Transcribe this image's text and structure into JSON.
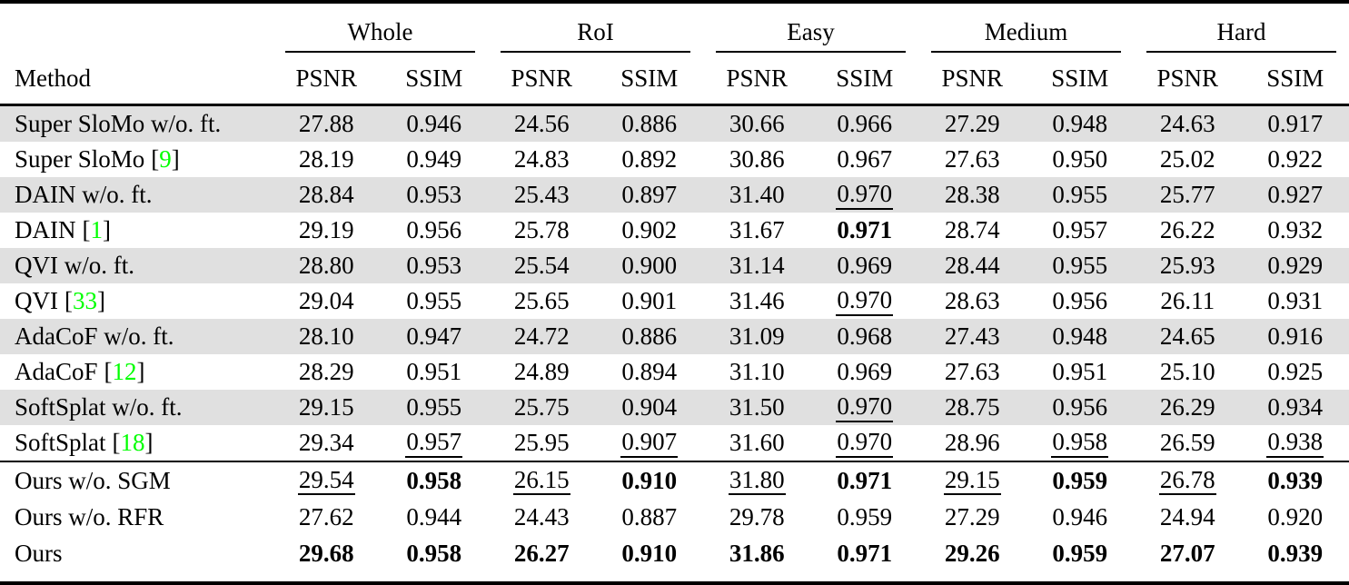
{
  "table": {
    "method_header": "Method",
    "metric_headers": [
      "PSNR",
      "SSIM"
    ],
    "groups": [
      {
        "label": "Whole"
      },
      {
        "label": "RoI"
      },
      {
        "label": "Easy"
      },
      {
        "label": "Medium"
      },
      {
        "label": "Hard"
      }
    ],
    "cite_open": "[",
    "cite_close": "]",
    "cite_color": "#00ff00",
    "stripe_color": "#e0e0e0",
    "rows": [
      {
        "label": "Super SloMo w/o. ft.",
        "cite": null,
        "shaded": true,
        "block": 1,
        "cells": [
          {
            "v": "27.88"
          },
          {
            "v": "0.946"
          },
          {
            "v": "24.56"
          },
          {
            "v": "0.886"
          },
          {
            "v": "30.66"
          },
          {
            "v": "0.966"
          },
          {
            "v": "27.29"
          },
          {
            "v": "0.948"
          },
          {
            "v": "24.63"
          },
          {
            "v": "0.917"
          }
        ]
      },
      {
        "label": "Super SloMo",
        "cite": "9",
        "shaded": false,
        "block": 1,
        "cells": [
          {
            "v": "28.19"
          },
          {
            "v": "0.949"
          },
          {
            "v": "24.83"
          },
          {
            "v": "0.892"
          },
          {
            "v": "30.86"
          },
          {
            "v": "0.967"
          },
          {
            "v": "27.63"
          },
          {
            "v": "0.950"
          },
          {
            "v": "25.02"
          },
          {
            "v": "0.922"
          }
        ]
      },
      {
        "label": "DAIN w/o. ft.",
        "cite": null,
        "shaded": true,
        "block": 1,
        "cells": [
          {
            "v": "28.84"
          },
          {
            "v": "0.953"
          },
          {
            "v": "25.43"
          },
          {
            "v": "0.897"
          },
          {
            "v": "31.40"
          },
          {
            "v": "0.970",
            "f": "u"
          },
          {
            "v": "28.38"
          },
          {
            "v": "0.955"
          },
          {
            "v": "25.77"
          },
          {
            "v": "0.927"
          }
        ]
      },
      {
        "label": "DAIN",
        "cite": "1",
        "shaded": false,
        "block": 1,
        "cells": [
          {
            "v": "29.19"
          },
          {
            "v": "0.956"
          },
          {
            "v": "25.78"
          },
          {
            "v": "0.902"
          },
          {
            "v": "31.67"
          },
          {
            "v": "0.971",
            "f": "b"
          },
          {
            "v": "28.74"
          },
          {
            "v": "0.957"
          },
          {
            "v": "26.22"
          },
          {
            "v": "0.932"
          }
        ]
      },
      {
        "label": "QVI w/o. ft.",
        "cite": null,
        "shaded": true,
        "block": 1,
        "cells": [
          {
            "v": "28.80"
          },
          {
            "v": "0.953"
          },
          {
            "v": "25.54"
          },
          {
            "v": "0.900"
          },
          {
            "v": "31.14"
          },
          {
            "v": "0.969"
          },
          {
            "v": "28.44"
          },
          {
            "v": "0.955"
          },
          {
            "v": "25.93"
          },
          {
            "v": "0.929"
          }
        ]
      },
      {
        "label": "QVI",
        "cite": "33",
        "shaded": false,
        "block": 1,
        "cells": [
          {
            "v": "29.04"
          },
          {
            "v": "0.955"
          },
          {
            "v": "25.65"
          },
          {
            "v": "0.901"
          },
          {
            "v": "31.46"
          },
          {
            "v": "0.970",
            "f": "u"
          },
          {
            "v": "28.63"
          },
          {
            "v": "0.956"
          },
          {
            "v": "26.11"
          },
          {
            "v": "0.931"
          }
        ]
      },
      {
        "label": "AdaCoF w/o. ft.",
        "cite": null,
        "shaded": true,
        "block": 1,
        "cells": [
          {
            "v": "28.10"
          },
          {
            "v": "0.947"
          },
          {
            "v": "24.72"
          },
          {
            "v": "0.886"
          },
          {
            "v": "31.09"
          },
          {
            "v": "0.968"
          },
          {
            "v": "27.43"
          },
          {
            "v": "0.948"
          },
          {
            "v": "24.65"
          },
          {
            "v": "0.916"
          }
        ]
      },
      {
        "label": "AdaCoF",
        "cite": "12",
        "shaded": false,
        "block": 1,
        "cells": [
          {
            "v": "28.29"
          },
          {
            "v": "0.951"
          },
          {
            "v": "24.89"
          },
          {
            "v": "0.894"
          },
          {
            "v": "31.10"
          },
          {
            "v": "0.969"
          },
          {
            "v": "27.63"
          },
          {
            "v": "0.951"
          },
          {
            "v": "25.10"
          },
          {
            "v": "0.925"
          }
        ]
      },
      {
        "label": "SoftSplat w/o. ft.",
        "cite": null,
        "shaded": true,
        "block": 1,
        "cells": [
          {
            "v": "29.15"
          },
          {
            "v": "0.955"
          },
          {
            "v": "25.75"
          },
          {
            "v": "0.904"
          },
          {
            "v": "31.50"
          },
          {
            "v": "0.970",
            "f": "u"
          },
          {
            "v": "28.75"
          },
          {
            "v": "0.956"
          },
          {
            "v": "26.29"
          },
          {
            "v": "0.934"
          }
        ]
      },
      {
        "label": "SoftSplat",
        "cite": "18",
        "shaded": false,
        "block": 1,
        "cells": [
          {
            "v": "29.34"
          },
          {
            "v": "0.957",
            "f": "u"
          },
          {
            "v": "25.95"
          },
          {
            "v": "0.907",
            "f": "u"
          },
          {
            "v": "31.60"
          },
          {
            "v": "0.970",
            "f": "u"
          },
          {
            "v": "28.96"
          },
          {
            "v": "0.958",
            "f": "u"
          },
          {
            "v": "26.59"
          },
          {
            "v": "0.938",
            "f": "u"
          }
        ]
      },
      {
        "label": "Ours w/o. SGM",
        "cite": null,
        "shaded": false,
        "block": 2,
        "cells": [
          {
            "v": "29.54",
            "f": "u"
          },
          {
            "v": "0.958",
            "f": "b"
          },
          {
            "v": "26.15",
            "f": "u"
          },
          {
            "v": "0.910",
            "f": "b"
          },
          {
            "v": "31.80",
            "f": "u"
          },
          {
            "v": "0.971",
            "f": "b"
          },
          {
            "v": "29.15",
            "f": "u"
          },
          {
            "v": "0.959",
            "f": "b"
          },
          {
            "v": "26.78",
            "f": "u"
          },
          {
            "v": "0.939",
            "f": "b"
          }
        ]
      },
      {
        "label": "Ours w/o. RFR",
        "cite": null,
        "shaded": false,
        "block": 2,
        "cells": [
          {
            "v": "27.62"
          },
          {
            "v": "0.944"
          },
          {
            "v": "24.43"
          },
          {
            "v": "0.887"
          },
          {
            "v": "29.78"
          },
          {
            "v": "0.959"
          },
          {
            "v": "27.29"
          },
          {
            "v": "0.946"
          },
          {
            "v": "24.94"
          },
          {
            "v": "0.920"
          }
        ]
      },
      {
        "label": "Ours",
        "cite": null,
        "shaded": false,
        "block": 2,
        "cells": [
          {
            "v": "29.68",
            "f": "b"
          },
          {
            "v": "0.958",
            "f": "b"
          },
          {
            "v": "26.27",
            "f": "b"
          },
          {
            "v": "0.910",
            "f": "b"
          },
          {
            "v": "31.86",
            "f": "b"
          },
          {
            "v": "0.971",
            "f": "b"
          },
          {
            "v": "29.26",
            "f": "b"
          },
          {
            "v": "0.959",
            "f": "b"
          },
          {
            "v": "27.07",
            "f": "b"
          },
          {
            "v": "0.939",
            "f": "b"
          }
        ]
      }
    ]
  }
}
